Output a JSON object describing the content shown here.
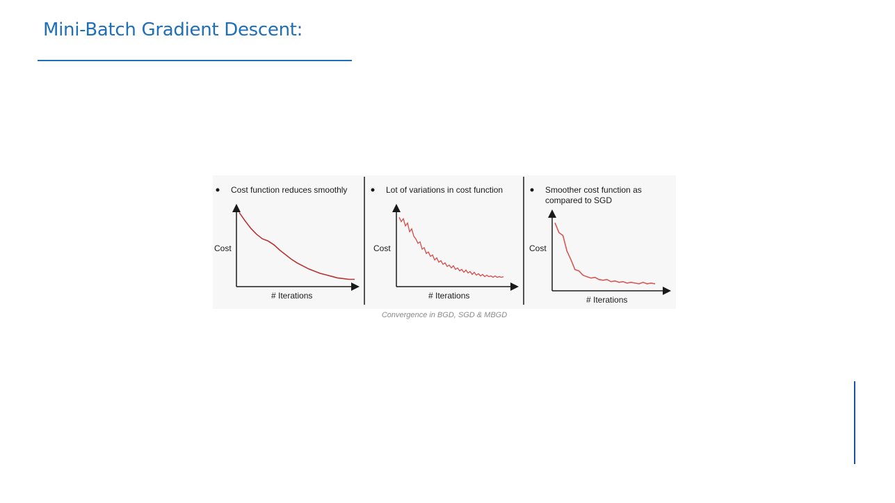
{
  "slide": {
    "title": "Mini-Batch Gradient Descent:",
    "caption": "Convergence in BGD, SGD & MBGD"
  },
  "colors": {
    "title": "#1f6fba",
    "curve_bgd": "#b83232",
    "curve_sgd": "#d94a4a",
    "curve_mbgd": "#d95555",
    "axis": "#1a1a1a"
  },
  "chart_data": [
    {
      "type": "line",
      "bullet": "Cost function reduces smoothly",
      "xlabel": "# Iterations",
      "ylabel": "Cost",
      "series": [
        {
          "x": [
            0,
            5,
            10,
            15,
            20,
            25,
            30,
            35,
            40,
            45,
            50,
            55,
            60,
            65,
            70,
            75,
            80,
            85,
            90,
            95,
            100
          ],
          "y": [
            95,
            84,
            74,
            66,
            60,
            57,
            52,
            45,
            39,
            33,
            28,
            24,
            20,
            17,
            14,
            12,
            10,
            8,
            7,
            6,
            6
          ]
        }
      ]
    },
    {
      "type": "line",
      "bullet": "Lot of variations in cost function",
      "xlabel": "# Iterations",
      "ylabel": "Cost",
      "series": [
        {
          "x": [
            0,
            2,
            4,
            6,
            8,
            10,
            12,
            14,
            16,
            18,
            20,
            22,
            24,
            26,
            28,
            30,
            32,
            34,
            36,
            38,
            40,
            42,
            44,
            46,
            48,
            50,
            52,
            54,
            56,
            58,
            60,
            62,
            64,
            66,
            68,
            70,
            72,
            74,
            76,
            78,
            80,
            82,
            84,
            86,
            88,
            90,
            92,
            94,
            96,
            98,
            100
          ],
          "y": [
            92,
            86,
            90,
            80,
            84,
            72,
            76,
            66,
            62,
            56,
            58,
            48,
            50,
            42,
            44,
            38,
            40,
            33,
            36,
            30,
            32,
            27,
            29,
            24,
            26,
            22,
            25,
            20,
            22,
            18,
            20,
            16,
            19,
            15,
            17,
            13,
            16,
            12,
            14,
            11,
            13,
            10,
            12,
            10,
            11,
            9,
            11,
            9,
            10,
            9,
            10
          ]
        }
      ]
    },
    {
      "type": "line",
      "bullet": "Smoother cost function as compared to SGD",
      "xlabel": "# Iterations",
      "ylabel": "Cost",
      "series": [
        {
          "x": [
            0,
            4,
            8,
            12,
            16,
            20,
            24,
            28,
            32,
            36,
            40,
            44,
            48,
            52,
            56,
            60,
            64,
            68,
            72,
            76,
            80,
            84,
            88,
            92,
            96,
            100
          ],
          "y": [
            92,
            78,
            74,
            52,
            40,
            26,
            24,
            18,
            16,
            14,
            15,
            12,
            11,
            12,
            9,
            10,
            8,
            9,
            7,
            8,
            7,
            6,
            8,
            6,
            7,
            6
          ]
        }
      ]
    }
  ]
}
